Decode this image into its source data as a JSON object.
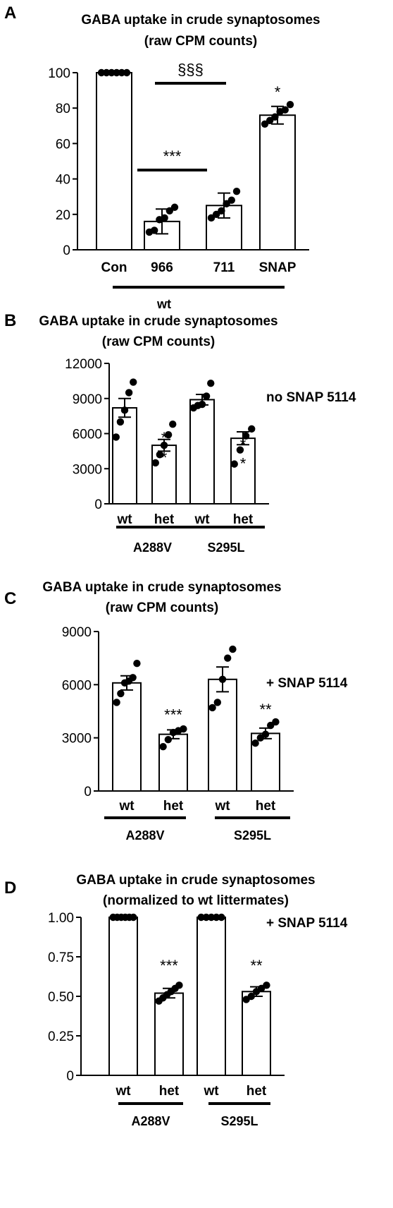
{
  "chart_data": [
    {
      "type": "bar",
      "panel": "A",
      "title": "GABA uptake in crude synaptosomes",
      "subtitle": "(raw CPM counts)",
      "ylim": [
        0,
        100
      ],
      "yticks": [
        "0",
        "20",
        "40",
        "60",
        "80",
        "100"
      ],
      "categories": [
        "Con",
        "966",
        "711",
        "SNAP"
      ],
      "values": [
        100,
        16,
        25,
        76
      ],
      "errors": [
        0,
        7,
        7,
        5
      ],
      "points": [
        [
          100,
          100,
          100,
          100,
          100,
          100
        ],
        [
          10,
          11,
          17,
          18,
          22,
          24
        ],
        [
          18,
          20,
          22,
          26,
          28,
          33
        ],
        [
          71,
          73,
          75,
          78,
          79,
          82
        ]
      ],
      "group_labels": [
        {
          "text": "wt",
          "from": 0,
          "to": 3
        }
      ],
      "significance": [
        {
          "text": "***",
          "from": 1,
          "to": 2,
          "y": 45
        },
        {
          "text": "§§§",
          "from": 1,
          "to": 2,
          "y": 94
        },
        {
          "text": "*",
          "at": 3,
          "y": 86
        }
      ],
      "note": ""
    },
    {
      "type": "bar",
      "panel": "B",
      "title": "GABA uptake in crude synaptosomes",
      "subtitle": "(raw CPM counts)",
      "ylim": [
        0,
        12000
      ],
      "yticks": [
        "0",
        "3000",
        "6000",
        "9000",
        "12000"
      ],
      "categories": [
        "wt",
        "het",
        "wt",
        "het"
      ],
      "values": [
        8200,
        5000,
        8900,
        5600
      ],
      "errors": [
        800,
        500,
        450,
        550
      ],
      "points": [
        [
          5700,
          7000,
          8000,
          9500,
          10400
        ],
        [
          3500,
          4200,
          5000,
          5900,
          6800
        ],
        [
          8200,
          8400,
          8500,
          9200,
          10300
        ],
        [
          3400,
          4600,
          5800,
          6400
        ]
      ],
      "group_labels": [
        {
          "text": "A288V",
          "from": 0,
          "to": 1
        },
        {
          "text": "S295L",
          "from": 2,
          "to": 3
        }
      ],
      "significance": [
        {
          "text": "*",
          "at": 1,
          "y": 5200
        },
        {
          "text": "*",
          "at": 1,
          "y": 3500
        },
        {
          "text": "*",
          "at": 3,
          "y": 4600
        },
        {
          "text": "*",
          "at": 3,
          "y": 3000
        }
      ],
      "note": "no SNAP 5114"
    },
    {
      "type": "bar",
      "panel": "C",
      "title": "GABA uptake in crude synaptosomes",
      "subtitle": "(raw CPM counts)",
      "ylim": [
        0,
        9000
      ],
      "yticks": [
        "0",
        "3000",
        "6000",
        "9000"
      ],
      "categories": [
        "wt",
        "het",
        "wt",
        "het"
      ],
      "values": [
        6100,
        3200,
        6300,
        3250
      ],
      "errors": [
        400,
        250,
        700,
        300
      ],
      "points": [
        [
          5000,
          5500,
          6100,
          6200,
          6400,
          7200
        ],
        [
          2500,
          2900,
          3300,
          3400,
          3500
        ],
        [
          4700,
          5000,
          6300,
          7500,
          8000
        ],
        [
          2700,
          3000,
          3200,
          3700,
          3900
        ]
      ],
      "group_labels": [
        {
          "text": "A288V",
          "from": 0,
          "to": 1
        },
        {
          "text": "S295L",
          "from": 2,
          "to": 3
        }
      ],
      "significance": [
        {
          "text": "***",
          "at": 1,
          "y": 4000
        },
        {
          "text": "**",
          "at": 3,
          "y": 4300
        }
      ],
      "note": "+ SNAP 5114"
    },
    {
      "type": "bar",
      "panel": "D",
      "title": "GABA uptake in crude synaptosomes",
      "subtitle": "(normalized to wt littermates)",
      "ylim": [
        0,
        1.0
      ],
      "yticks": [
        "0",
        "0.25",
        "0.50",
        "0.75",
        "1.00"
      ],
      "categories": [
        "wt",
        "het",
        "wt",
        "het"
      ],
      "values": [
        1.0,
        0.52,
        1.0,
        0.53
      ],
      "errors": [
        0,
        0.03,
        0,
        0.03
      ],
      "points": [
        [
          1.0,
          1.0,
          1.0,
          1.0,
          1.0,
          1.0
        ],
        [
          0.47,
          0.49,
          0.51,
          0.53,
          0.55,
          0.57
        ],
        [
          1.0,
          1.0,
          1.0,
          1.0,
          1.0
        ],
        [
          0.48,
          0.5,
          0.53,
          0.55,
          0.57
        ]
      ],
      "group_labels": [
        {
          "text": "A288V",
          "from": 0,
          "to": 1
        },
        {
          "text": "S295L",
          "from": 2,
          "to": 3
        }
      ],
      "significance": [
        {
          "text": "***",
          "at": 1,
          "y": 0.66
        },
        {
          "text": "**",
          "at": 3,
          "y": 0.66
        }
      ],
      "note": "+ SNAP 5114"
    }
  ]
}
